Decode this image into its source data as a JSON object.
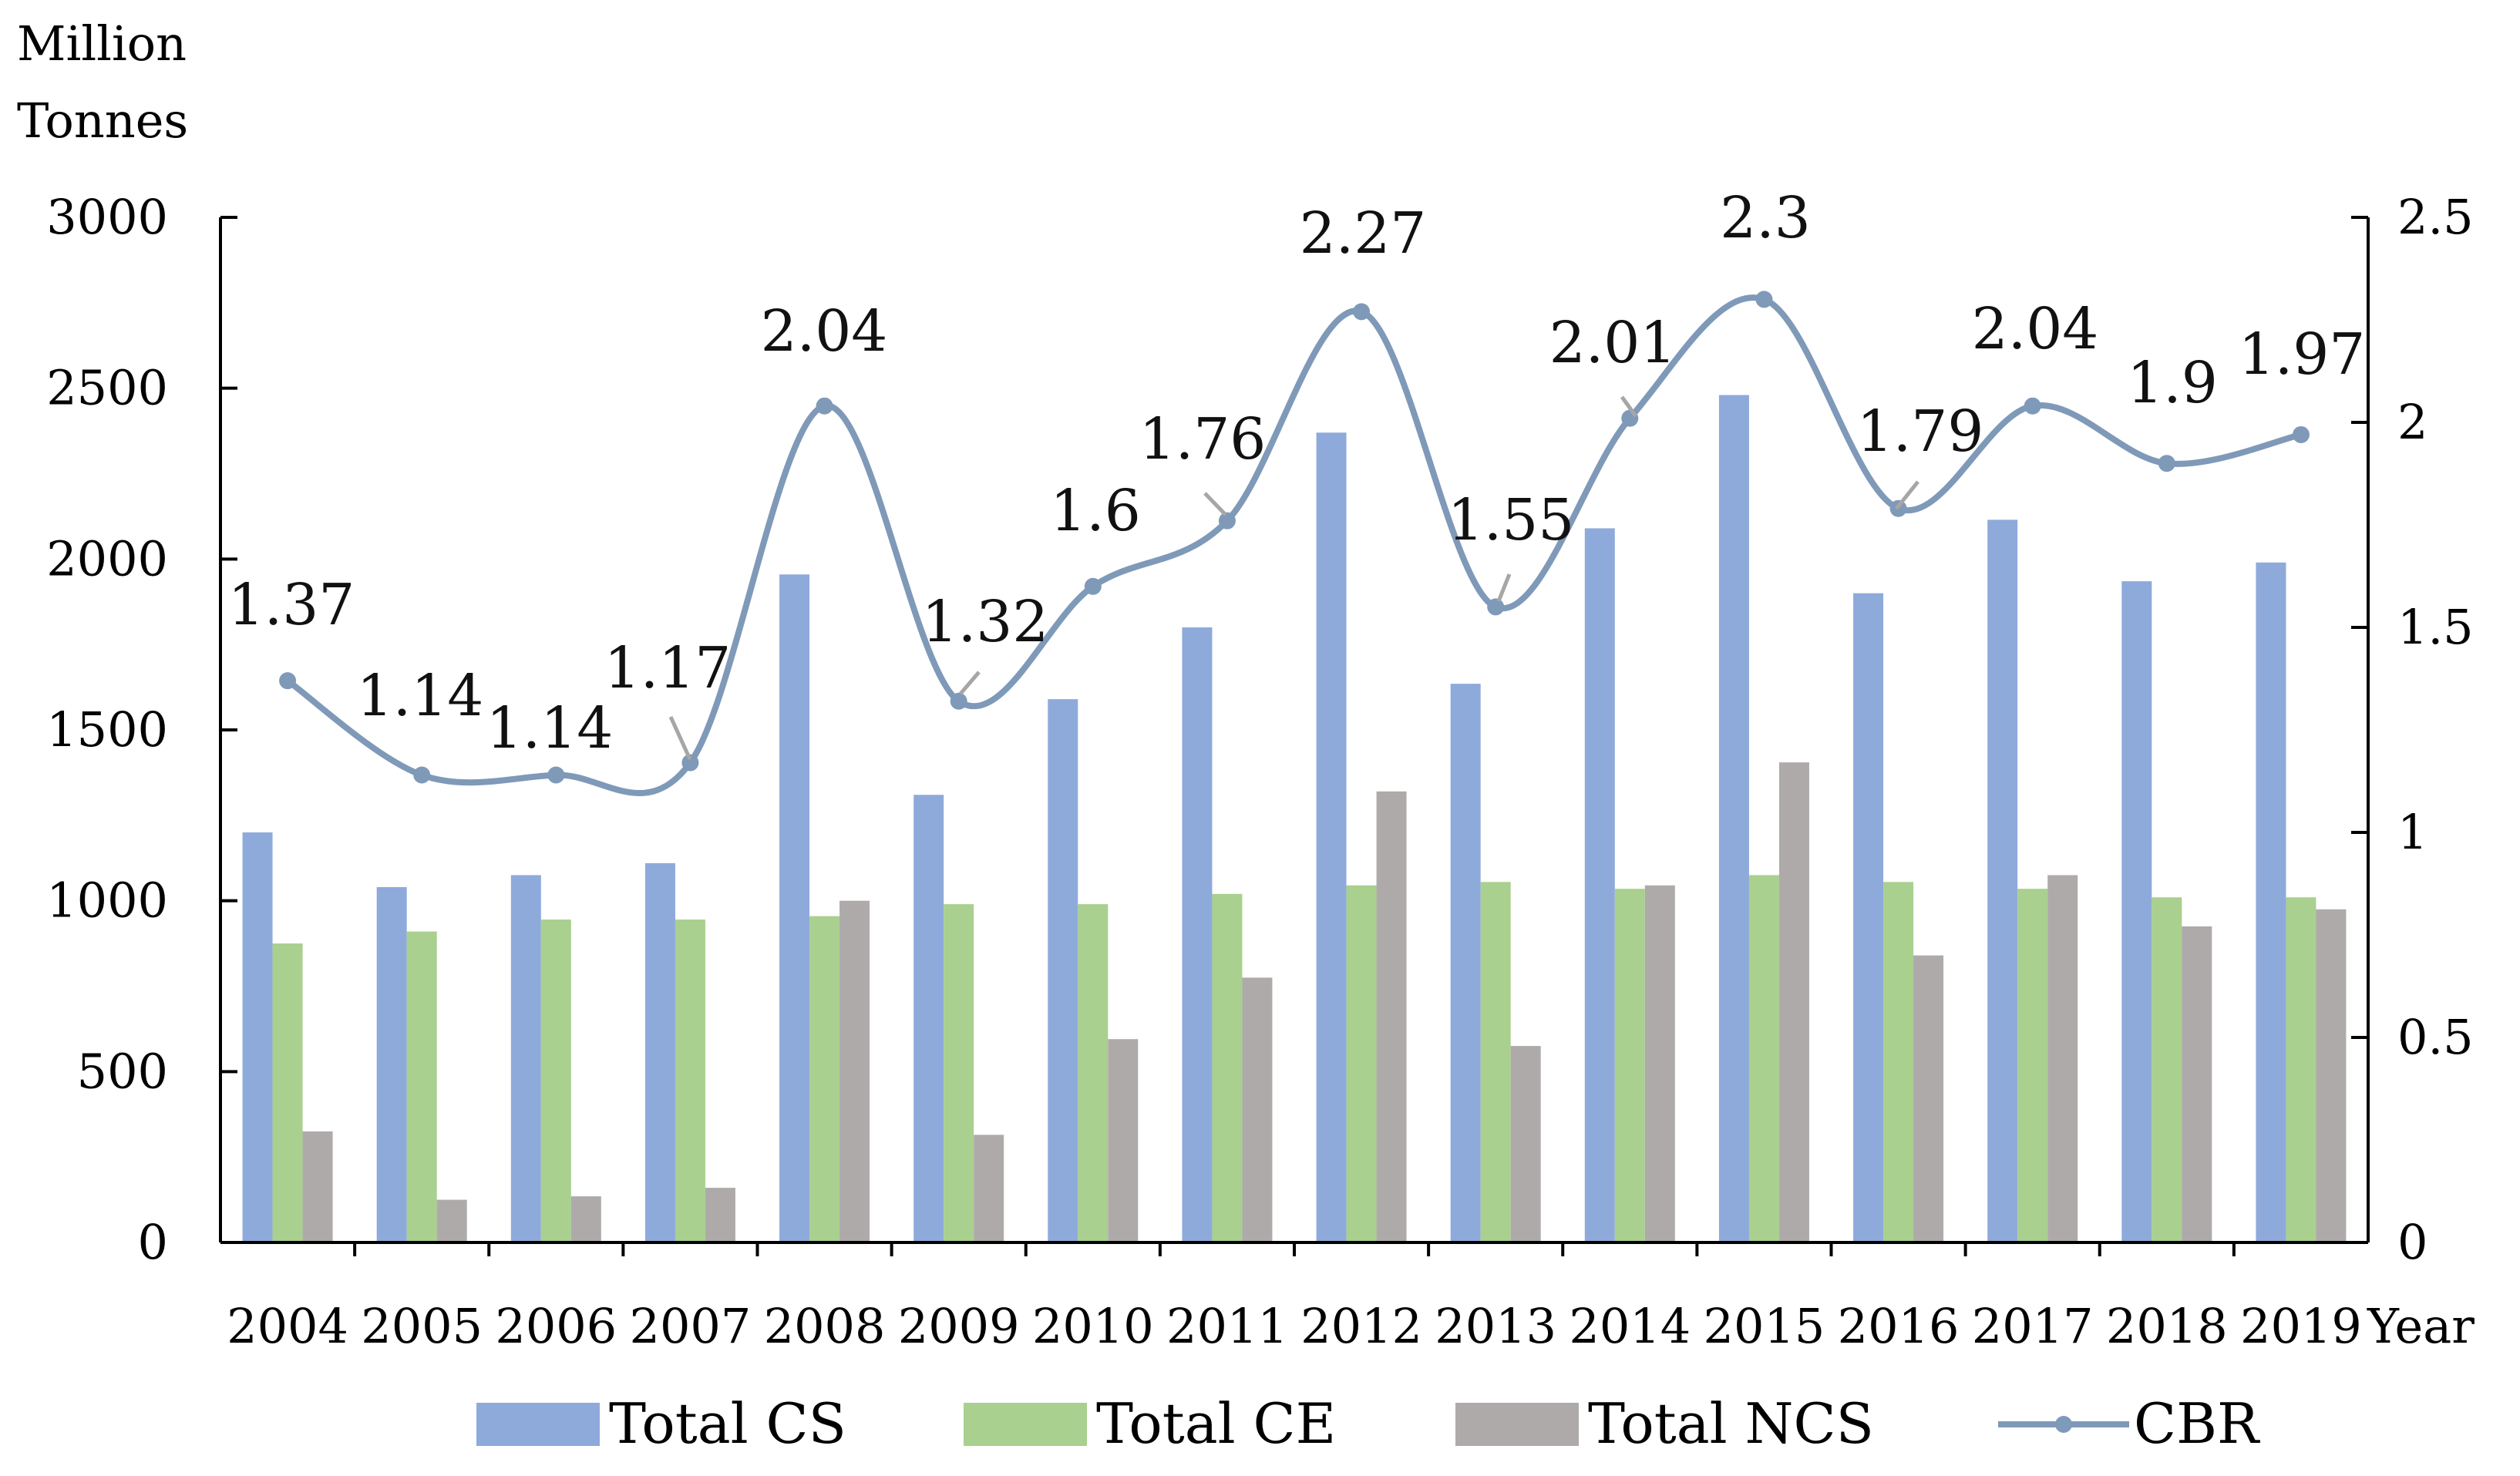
{
  "chart_data": {
    "type": "bar",
    "title": "",
    "y_axis_title_lines": [
      "Million",
      "Tonnes"
    ],
    "xlabel": "Year",
    "ylabel_left": "Million Tonnes",
    "ylim_left": [
      0,
      3000
    ],
    "yticks_left": [
      "0",
      "500",
      "1000",
      "1500",
      "2000",
      "2500",
      "3000"
    ],
    "ylim_right": [
      0,
      2.5
    ],
    "yticks_right": [
      "0",
      "0.5",
      "1",
      "1.5",
      "2",
      "2.5"
    ],
    "categories": [
      "2004",
      "2005",
      "2006",
      "2007",
      "2008",
      "2009",
      "2010",
      "2011",
      "2012",
      "2013",
      "2014",
      "2015",
      "2016",
      "2017",
      "2018",
      "2019"
    ],
    "series": [
      {
        "name": "Total CS",
        "kind": "bar",
        "axis": "left",
        "color": "#8eaadb",
        "values": [
          1200,
          1040,
          1075,
          1110,
          1955,
          1310,
          1590,
          1800,
          2370,
          1635,
          2090,
          2480,
          1900,
          2115,
          1935,
          1990
        ]
      },
      {
        "name": "Total CE",
        "kind": "bar",
        "axis": "left",
        "color": "#a9d08e",
        "values": [
          875,
          910,
          945,
          945,
          955,
          990,
          990,
          1020,
          1045,
          1055,
          1035,
          1075,
          1055,
          1035,
          1010,
          1010
        ]
      },
      {
        "name": "Total NCS",
        "kind": "bar",
        "axis": "left",
        "color": "#aeaaaa",
        "values": [
          325,
          125,
          135,
          160,
          1000,
          315,
          595,
          775,
          1320,
          575,
          1045,
          1405,
          840,
          1075,
          925,
          975
        ]
      },
      {
        "name": "CBR",
        "kind": "line",
        "axis": "right",
        "color": "#7f99b8",
        "values": [
          1.37,
          1.14,
          1.14,
          1.17,
          2.04,
          1.32,
          1.6,
          1.76,
          2.27,
          1.55,
          2.01,
          2.3,
          1.79,
          2.04,
          1.9,
          1.97
        ],
        "labels": [
          "1.37",
          "1.14",
          "1.14",
          "1.17",
          "2.04",
          "1.32",
          "1.6",
          "1.76",
          "2.27",
          "1.55",
          "2.01",
          "2.3",
          "1.79",
          "2.04",
          "1.9",
          "1.97"
        ]
      }
    ],
    "legend": {
      "placement": "bottom",
      "entries": [
        "Total CS",
        "Total CE",
        "Total NCS",
        "CBR"
      ]
    }
  }
}
